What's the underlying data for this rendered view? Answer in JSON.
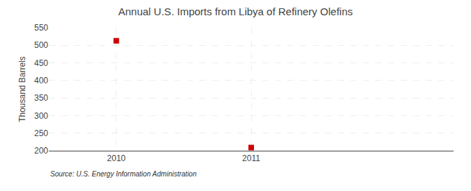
{
  "chart_data": {
    "type": "scatter",
    "title": "Annual U.S. Imports from Libya of Refinery Olefins",
    "ylabel": "Thousand Barrels",
    "source": "Source: U.S. Energy Information Administration",
    "x": [
      2010,
      2011
    ],
    "values": [
      513,
      209
    ],
    "color": "#cc0000",
    "marker": "square",
    "xlim": [
      2009.5,
      2012.5
    ],
    "xticks": [
      2010,
      2011
    ],
    "ylim": [
      200,
      550
    ],
    "yticks": [
      200,
      250,
      300,
      350,
      400,
      450,
      500,
      550
    ],
    "grid": true
  }
}
